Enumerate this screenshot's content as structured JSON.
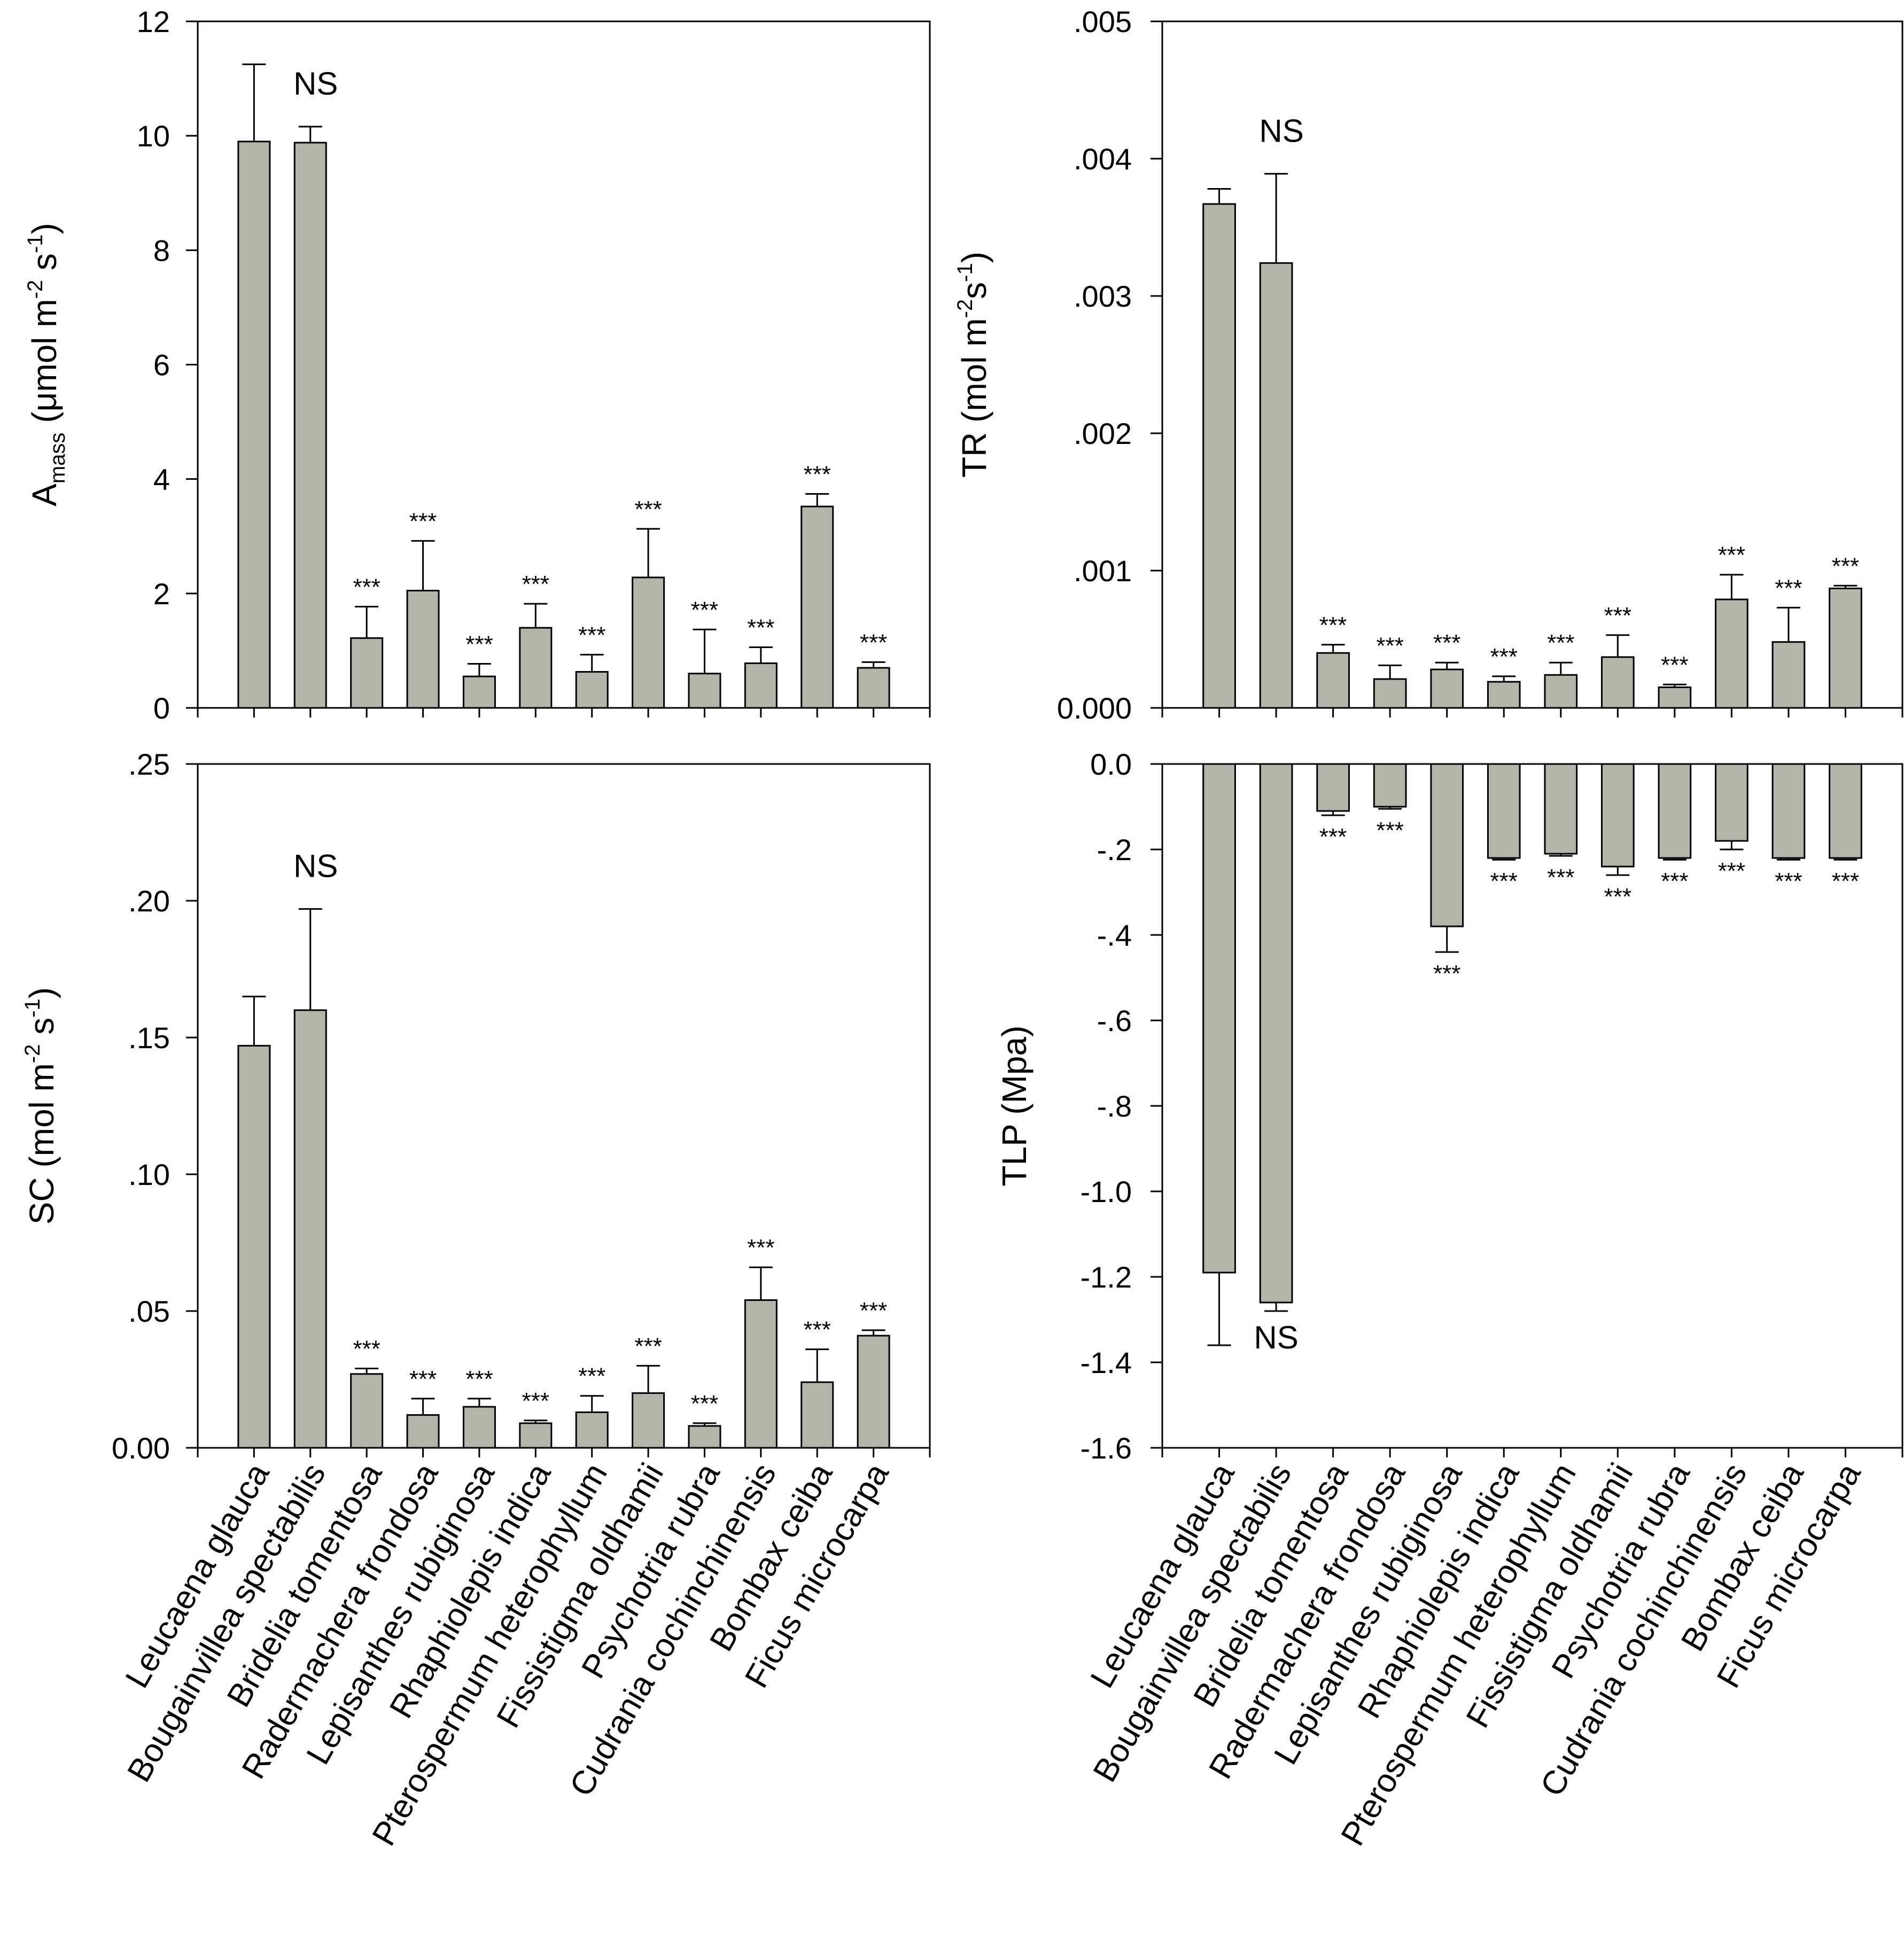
{
  "figure": {
    "background": "#ffffff",
    "bar_color": "#b4b4a8"
  },
  "species": [
    "Leucaena glauca",
    "Bougainvillea spectabilis",
    "Bridelia tomentosa",
    "Radermachera frondosa",
    "Lepisanthes rubiginosa",
    "Rhaphiolepis indica",
    "Pterospermum heterophyllum",
    "Fissistigma oldhamii",
    "Psychotria rubra",
    "Cudrania cochinchinensis",
    "Bombax ceiba",
    "Ficus microcarpa"
  ],
  "chart_data": [
    {
      "id": "amass",
      "type": "bar",
      "position": "top-left",
      "title": "",
      "ylabel": {
        "main": "A",
        "sub": "mass",
        "unit_prefix": " (μmol m",
        "exp1": "-2",
        "mid": " s",
        "exp2": "-1",
        "close": ")"
      },
      "ylim": [
        0,
        12
      ],
      "yticks": [
        0,
        2,
        4,
        6,
        8,
        10,
        12
      ],
      "ytick_labels": [
        "0",
        "2",
        "4",
        "6",
        "8",
        "10",
        "12"
      ],
      "values": [
        9.9,
        9.88,
        1.22,
        2.05,
        0.55,
        1.4,
        0.63,
        2.28,
        0.6,
        0.78,
        3.52,
        0.7
      ],
      "errors": [
        1.35,
        0.28,
        0.55,
        0.87,
        0.22,
        0.42,
        0.3,
        0.85,
        0.77,
        0.28,
        0.22,
        0.1
      ],
      "annotations": [
        "",
        "NS",
        "***",
        "***",
        "***",
        "***",
        "***",
        "***",
        "***",
        "***",
        "***",
        "***"
      ]
    },
    {
      "id": "tr",
      "type": "bar",
      "position": "top-right",
      "title": "",
      "ylabel": {
        "main": "TR (mol m",
        "exp1": "-2",
        "mid": "s",
        "exp2": "-1",
        "close": ")"
      },
      "ylim": [
        0,
        0.005
      ],
      "yticks": [
        0,
        0.001,
        0.002,
        0.003,
        0.004,
        0.005
      ],
      "ytick_labels": [
        "0.000",
        ".001",
        ".002",
        ".003",
        ".004",
        ".005"
      ],
      "values": [
        0.00367,
        0.00324,
        0.0004,
        0.00021,
        0.00028,
        0.00019,
        0.00024,
        0.00037,
        0.00015,
        0.00079,
        0.00048,
        0.00087
      ],
      "errors": [
        0.00011,
        0.00065,
        6e-05,
        0.0001,
        5e-05,
        4e-05,
        9e-05,
        0.00016,
        2e-05,
        0.00018,
        0.00025,
        2e-05
      ],
      "annotations": [
        "",
        "NS",
        "***",
        "***",
        "***",
        "***",
        "***",
        "***",
        "***",
        "***",
        "***",
        "***"
      ]
    },
    {
      "id": "sc",
      "type": "bar",
      "position": "bottom-left",
      "title": "",
      "ylabel": {
        "main": "SC (mol m",
        "exp1": "-2",
        "mid": " s",
        "exp2": "-1",
        "close": ")"
      },
      "ylim": [
        0,
        0.25
      ],
      "yticks": [
        0,
        0.05,
        0.1,
        0.15,
        0.2,
        0.25
      ],
      "ytick_labels": [
        "0.00",
        ".05",
        ".10",
        ".15",
        ".20",
        ".25"
      ],
      "values": [
        0.147,
        0.16,
        0.027,
        0.012,
        0.015,
        0.009,
        0.013,
        0.02,
        0.008,
        0.054,
        0.024,
        0.041
      ],
      "errors": [
        0.018,
        0.037,
        0.002,
        0.006,
        0.003,
        0.001,
        0.006,
        0.01,
        0.001,
        0.012,
        0.012,
        0.002
      ],
      "annotations": [
        "",
        "NS",
        "***",
        "***",
        "***",
        "***",
        "***",
        "***",
        "***",
        "***",
        "***",
        "***"
      ],
      "xticklabels": "species"
    },
    {
      "id": "tlp",
      "type": "bar",
      "position": "bottom-right",
      "title": "",
      "ylabel": {
        "main": "TLP (Mpa)"
      },
      "ylim": [
        -1.6,
        0
      ],
      "yticks": [
        0,
        -0.2,
        -0.4,
        -0.6,
        -0.8,
        -1.0,
        -1.2,
        -1.4,
        -1.6
      ],
      "ytick_labels": [
        "0.0",
        "-.2",
        "-.4",
        "-.6",
        "-.8",
        "-1.0",
        "-1.2",
        "-1.4",
        "-1.6"
      ],
      "values": [
        -1.19,
        -1.26,
        -0.11,
        -0.1,
        -0.38,
        -0.22,
        -0.21,
        -0.24,
        -0.22,
        -0.18,
        -0.22,
        -0.22
      ],
      "errors": [
        0.17,
        0.02,
        0.01,
        0.005,
        0.06,
        0.004,
        0.005,
        0.02,
        0.004,
        0.02,
        0.004,
        0.004
      ],
      "annotations": [
        "",
        "NS",
        "***",
        "***",
        "***",
        "***",
        "***",
        "***",
        "***",
        "***",
        "***",
        "***"
      ],
      "xticklabels": "species"
    }
  ]
}
